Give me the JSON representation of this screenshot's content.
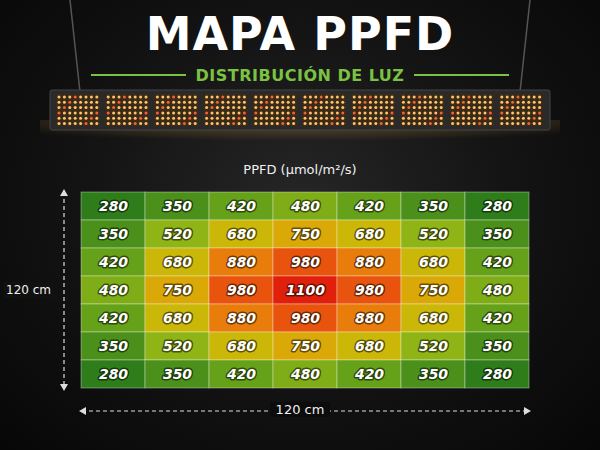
{
  "chart_data": {
    "type": "heatmap",
    "title": "MAPA PPFD",
    "subtitle": "DISTRIBUCIÓN DE LUZ",
    "color_label": "PPFD (µmol/m²/s)",
    "xlabel": "120 cm",
    "ylabel": "120 cm",
    "cells": [
      [
        280,
        350,
        420,
        480,
        420,
        350,
        280
      ],
      [
        350,
        520,
        680,
        750,
        680,
        520,
        350
      ],
      [
        420,
        680,
        880,
        980,
        880,
        680,
        420
      ],
      [
        480,
        750,
        980,
        1100,
        980,
        750,
        480
      ],
      [
        420,
        680,
        880,
        980,
        880,
        680,
        420
      ],
      [
        350,
        520,
        680,
        750,
        680,
        520,
        350
      ],
      [
        280,
        350,
        420,
        480,
        420,
        350,
        280
      ]
    ],
    "data_labels": true,
    "tick_labels": false
  }
}
